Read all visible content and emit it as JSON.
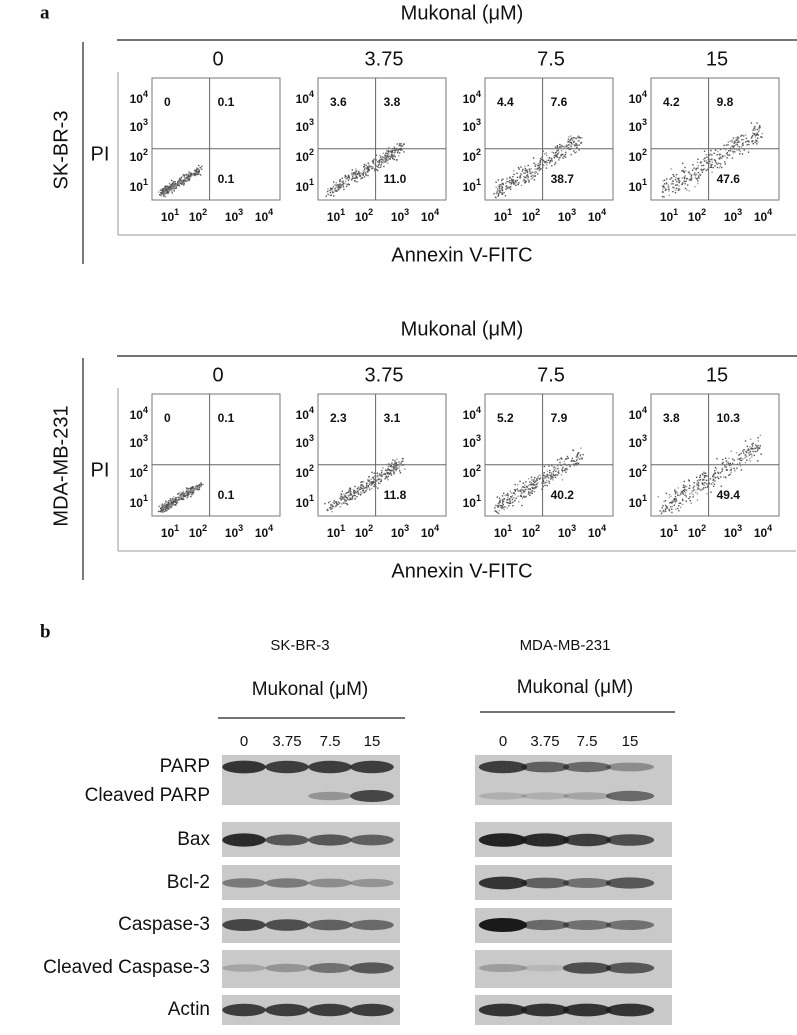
{
  "panel_a": {
    "label": "a",
    "tick_base": "10",
    "y_tick_exponents": [
      "4",
      "3",
      "2",
      "1"
    ],
    "x_tick_exponents": [
      "1",
      "2",
      "3",
      "4"
    ],
    "rows": [
      {
        "cell_line": "SK-BR-3",
        "treatment": "Mukonal (μM)",
        "doses": [
          "0",
          "3.75",
          "7.5",
          "15"
        ],
        "y_axis_label": "PI",
        "x_axis_label": "Annexin V-FITC",
        "plots": [
          {
            "upper_left": "0",
            "upper_right": "0.1",
            "lower_right": "0.1"
          },
          {
            "upper_left": "3.6",
            "upper_right": "3.8",
            "lower_right": "11.0"
          },
          {
            "upper_left": "4.4",
            "upper_right": "7.6",
            "lower_right": "38.7"
          },
          {
            "upper_left": "4.2",
            "upper_right": "9.8",
            "lower_right": "47.6"
          }
        ]
      },
      {
        "cell_line": "MDA-MB-231",
        "treatment": "Mukonal (μM)",
        "doses": [
          "0",
          "3.75",
          "7.5",
          "15"
        ],
        "y_axis_label": "PI",
        "x_axis_label": "Annexin V-FITC",
        "plots": [
          {
            "upper_left": "0",
            "upper_right": "0.1",
            "lower_right": "0.1"
          },
          {
            "upper_left": "2.3",
            "upper_right": "3.1",
            "lower_right": "11.8"
          },
          {
            "upper_left": "5.2",
            "upper_right": "7.9",
            "lower_right": "40.2"
          },
          {
            "upper_left": "3.8",
            "upper_right": "10.3",
            "lower_right": "49.4"
          }
        ]
      }
    ]
  },
  "panel_b": {
    "label": "b",
    "proteins": [
      "PARP",
      "Cleaved PARP",
      "Bax",
      "Bcl-2",
      "Caspase-3",
      "Cleaved Caspase-3",
      "Actin"
    ],
    "blots": [
      {
        "cell_line": "SK-BR-3",
        "treatment": "Mukonal (μM)",
        "doses": [
          "0",
          "3.75",
          "7.5",
          "15"
        ]
      },
      {
        "cell_line": "MDA-MB-231",
        "treatment": "Mukonal (μM)",
        "doses": [
          "0",
          "3.75",
          "7.5",
          "15"
        ]
      }
    ]
  }
}
